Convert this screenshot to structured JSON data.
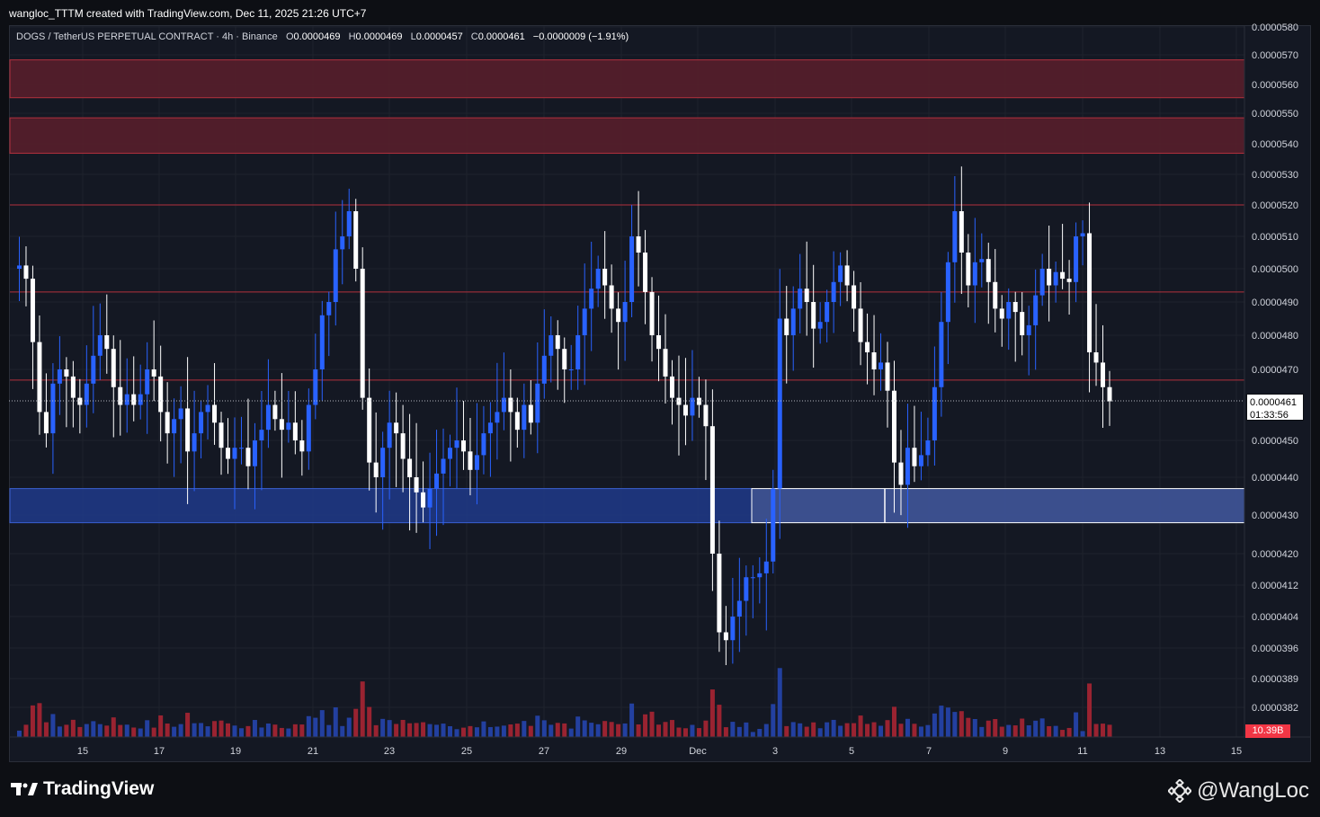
{
  "header": {
    "caption": "wangloc_TTTM created with TradingView.com, Dec 11, 2025 21:26 UTC+7"
  },
  "legend": {
    "symbol": "DOGS / TetherUS PERPETUAL CONTRACT · 4h · Binance",
    "o_label": "O",
    "o": "0.0000469",
    "h_label": "H",
    "h": "0.0000469",
    "l_label": "L",
    "l": "0.0000457",
    "c_label": "C",
    "c": "0.0000461",
    "change": "−0.0000009 (−1.91%)"
  },
  "last_price": {
    "price": "0.0000461",
    "countdown": "01:33:56"
  },
  "volume_tag": "10.39B",
  "footer": {
    "brand": "TradingView",
    "watermark": "@WangLoc"
  },
  "colors": {
    "up": "#2962ff",
    "down": "#ffffff",
    "vol_up": "#2340a0",
    "vol_down": "#9a2331",
    "supply_zone": "#5a1f2b",
    "demand_zone": "#1f3a8a",
    "demand_zone_light": "#3d5293",
    "level_line": "#b2303d"
  },
  "chart_data": {
    "type": "candlestick",
    "title": "DOGS / TetherUS PERPETUAL CONTRACT · 4h · Binance",
    "timeframe": "4h",
    "y_ticks": [
      "0.0000580",
      "0.0000570",
      "0.0000560",
      "0.0000550",
      "0.0000540",
      "0.0000530",
      "0.0000520",
      "0.0000510",
      "0.0000500",
      "0.0000490",
      "0.0000480",
      "0.0000470",
      "0.0000450",
      "0.0000440",
      "0.0000430",
      "0.0000420",
      "0.0000412",
      "0.0000404",
      "0.0000396",
      "0.0000389",
      "0.0000382"
    ],
    "x_ticks": [
      "15",
      "17",
      "19",
      "21",
      "23",
      "25",
      "27",
      "29",
      "Dec",
      "3",
      "5",
      "7",
      "9",
      "11",
      "13",
      "15"
    ],
    "zones": [
      {
        "kind": "supply",
        "from": 5.554e-05,
        "to": 5.683e-05
      },
      {
        "kind": "supply",
        "from": 5.369e-05,
        "to": 5.485e-05
      },
      {
        "kind": "demand",
        "from": 4.28e-05,
        "to": 4.37e-05
      },
      {
        "kind": "demand-retest",
        "from": 4.28e-05,
        "to": 4.37e-05
      }
    ],
    "levels": [
      5.2e-05,
      4.93e-05,
      4.67e-05
    ],
    "ohlc_path": [
      5e-05,
      5.01e-05,
      4.97e-05,
      4.78e-05,
      4.58e-05,
      4.52e-05,
      4.66e-05,
      4.7e-05,
      4.68e-05,
      4.62e-05,
      4.6e-05,
      4.66e-05,
      4.74e-05,
      4.8e-05,
      4.76e-05,
      4.65e-05,
      4.6e-05,
      4.63e-05,
      4.6e-05,
      4.63e-05,
      4.7e-05,
      4.68e-05,
      4.58e-05,
      4.52e-05,
      4.56e-05,
      4.59e-05,
      4.47e-05,
      4.52e-05,
      4.58e-05,
      4.6e-05,
      4.55e-05,
      4.48e-05,
      4.45e-05,
      4.48e-05,
      4.48e-05,
      4.43e-05,
      4.5e-05,
      4.53e-05,
      4.6e-05,
      4.56e-05,
      4.53e-05,
      4.55e-05,
      4.5e-05,
      4.47e-05,
      4.6e-05,
      4.7e-05,
      4.86e-05,
      4.9e-05,
      5.06e-05,
      5.1e-05,
      5.18e-05,
      5e-05,
      4.62e-05,
      4.44e-05,
      4.4e-05,
      4.48e-05,
      4.55e-05,
      4.52e-05,
      4.45e-05,
      4.4e-05,
      4.36e-05,
      4.32e-05,
      4.37e-05,
      4.41e-05,
      4.45e-05,
      4.48e-05,
      4.5e-05,
      4.47e-05,
      4.42e-05,
      4.46e-05,
      4.52e-05,
      4.55e-05,
      4.58e-05,
      4.62e-05,
      4.58e-05,
      4.53e-05,
      4.6e-05,
      4.55e-05,
      4.66e-05,
      4.74e-05,
      4.8e-05,
      4.76e-05,
      4.7e-05,
      4.7e-05,
      4.8e-05,
      4.88e-05,
      4.94e-05,
      5e-05,
      4.95e-05,
      4.88e-05,
      4.84e-05,
      4.9e-05,
      5.1e-05,
      5.05e-05,
      4.93e-05,
      4.8e-05,
      4.76e-05,
      4.68e-05,
      4.62e-05,
      4.6e-05,
      4.57e-05,
      4.62e-05,
      4.6e-05,
      4.54e-05,
      4.2e-05,
      4e-05,
      3.98e-05,
      4.04e-05,
      4.08e-05,
      4.14e-05,
      4.14e-05,
      4.15e-05,
      4.18e-05,
      4.37e-05,
      4.85e-05,
      4.8e-05,
      4.88e-05,
      4.94e-05,
      4.9e-05,
      4.82e-05,
      4.84e-05,
      4.9e-05,
      4.96e-05,
      5.01e-05,
      4.95e-05,
      4.88e-05,
      4.78e-05,
      4.75e-05,
      4.7e-05,
      4.72e-05,
      4.64e-05,
      4.44e-05,
      4.38e-05,
      4.48e-05,
      4.43e-05,
      4.46e-05,
      4.5e-05,
      4.65e-05,
      4.84e-05,
      5.02e-05,
      5.18e-05,
      5.05e-05,
      4.95e-05,
      5.02e-05,
      5.03e-05,
      4.96e-05,
      4.88e-05,
      4.85e-05,
      4.9e-05,
      4.87e-05,
      4.8e-05,
      4.83e-05,
      4.92e-05,
      5e-05,
      4.95e-05,
      4.99e-05,
      4.97e-05,
      4.96e-05,
      5.1e-05,
      5.11e-05,
      4.75e-05,
      4.72e-05,
      4.65e-05,
      4.61e-05
    ]
  }
}
